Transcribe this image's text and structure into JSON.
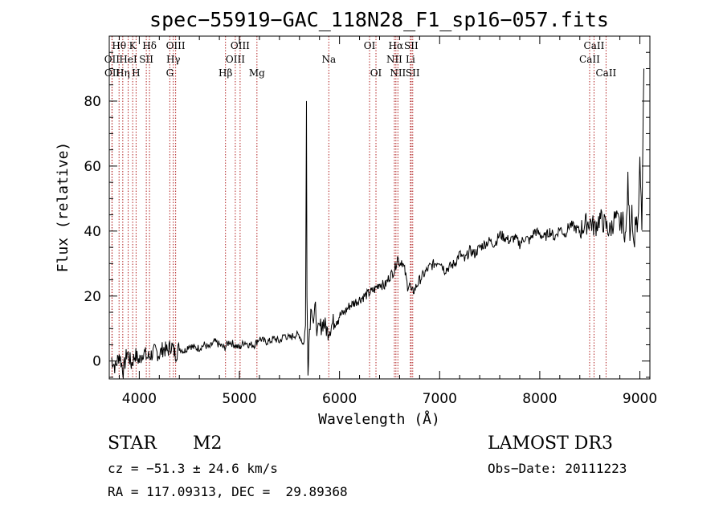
{
  "chart_data": {
    "type": "line",
    "title": "spec−55919−GAC_118N28_F1_sp16−057.fits",
    "xlabel": "Wavelength (Å)",
    "ylabel": "Flux (relative)",
    "xlim": [
      3700,
      9100
    ],
    "ylim": [
      -5.5,
      100
    ],
    "xticks": [
      4000,
      5000,
      6000,
      7000,
      8000,
      9000
    ],
    "yticks": [
      0,
      20,
      40,
      60,
      80
    ],
    "series": [
      {
        "name": "flux",
        "x": [
          3720,
          3760,
          3800,
          3840,
          3880,
          3920,
          3960,
          4000,
          4040,
          4080,
          4120,
          4160,
          4200,
          4240,
          4280,
          4320,
          4360,
          4400,
          4450,
          4500,
          4550,
          4600,
          4650,
          4700,
          4750,
          4800,
          4850,
          4900,
          4950,
          5000,
          5050,
          5100,
          5150,
          5200,
          5250,
          5300,
          5350,
          5400,
          5450,
          5500,
          5550,
          5600,
          5640,
          5660,
          5670,
          5675,
          5685,
          5700,
          5720,
          5740,
          5760,
          5780,
          5800,
          5840,
          5880,
          5920,
          5960,
          6000,
          6050,
          6100,
          6150,
          6200,
          6250,
          6300,
          6350,
          6400,
          6450,
          6500,
          6550,
          6580,
          6600,
          6620,
          6650,
          6680,
          6700,
          6720,
          6750,
          6800,
          6850,
          6900,
          6950,
          7000,
          7050,
          7100,
          7150,
          7200,
          7250,
          7300,
          7350,
          7400,
          7450,
          7500,
          7550,
          7600,
          7650,
          7700,
          7750,
          7800,
          7850,
          7900,
          7950,
          8000,
          8050,
          8100,
          8150,
          8200,
          8250,
          8300,
          8350,
          8400,
          8450,
          8500,
          8550,
          8600,
          8650,
          8700,
          8750,
          8800,
          8830,
          8860,
          8880,
          8900,
          8920,
          8940,
          8960,
          8980,
          9000,
          9020,
          9040
        ],
        "values": [
          1,
          -2,
          2,
          -3,
          3,
          -1,
          2,
          0,
          3,
          1,
          2,
          3,
          2,
          4,
          3,
          5,
          2,
          4,
          3,
          5,
          4,
          4,
          5,
          4,
          6,
          5,
          4,
          6,
          5,
          4,
          6,
          5,
          5,
          7,
          6,
          6,
          7,
          6,
          8,
          7,
          8,
          8,
          5,
          10,
          80,
          20,
          -2,
          10,
          18,
          12,
          16,
          8,
          10,
          12,
          9,
          11,
          13,
          14,
          15,
          17,
          18,
          19,
          20,
          21,
          22,
          24,
          23,
          26,
          28,
          32,
          30,
          31,
          28,
          23,
          24,
          21,
          22,
          25,
          27,
          29,
          30,
          31,
          28,
          29,
          30,
          33,
          31,
          34,
          33,
          35,
          36,
          37,
          36,
          39,
          38,
          37,
          38,
          36,
          38,
          37,
          40,
          39,
          38,
          40,
          38,
          41,
          39,
          42,
          41,
          40,
          42,
          43,
          41,
          44,
          42,
          40,
          44,
          42,
          43,
          38,
          55,
          40,
          48,
          35,
          45,
          40,
          60,
          42,
          90
        ]
      }
    ],
    "spectral_lines": [
      {
        "label": "Hθ",
        "x": 3798,
        "row": 1
      },
      {
        "label": "OII",
        "x": 3727,
        "row": 2
      },
      {
        "label": "OII",
        "x": 3729,
        "row": 3
      },
      {
        "label": "HeI",
        "x": 3889,
        "row": 2
      },
      {
        "label": "Hη",
        "x": 3835,
        "row": 3
      },
      {
        "label": "K",
        "x": 3934,
        "row": 1
      },
      {
        "label": "H",
        "x": 3968,
        "row": 3
      },
      {
        "label": "SII",
        "x": 4070,
        "row": 2
      },
      {
        "label": "Hδ",
        "x": 4102,
        "row": 1
      },
      {
        "label": "OIII",
        "x": 4363,
        "row": 1
      },
      {
        "label": "Hγ",
        "x": 4340,
        "row": 2
      },
      {
        "label": "G",
        "x": 4305,
        "row": 3
      },
      {
        "label": "Hβ",
        "x": 4861,
        "row": 3
      },
      {
        "label": "OIII",
        "x": 4959,
        "row": 2
      },
      {
        "label": "OIII",
        "x": 5007,
        "row": 1
      },
      {
        "label": "Mg",
        "x": 5175,
        "row": 3
      },
      {
        "label": "Na",
        "x": 5893,
        "row": 2
      },
      {
        "label": "OI",
        "x": 6300,
        "row": 1
      },
      {
        "label": "OI",
        "x": 6364,
        "row": 3
      },
      {
        "label": "NII",
        "x": 6548,
        "row": 2
      },
      {
        "label": "Hα",
        "x": 6563,
        "row": 1
      },
      {
        "label": "NII",
        "x": 6583,
        "row": 3
      },
      {
        "label": "Li",
        "x": 6708,
        "row": 2
      },
      {
        "label": "SII",
        "x": 6716,
        "row": 1
      },
      {
        "label": "SII",
        "x": 6731,
        "row": 3
      },
      {
        "label": "CaII",
        "x": 8498,
        "row": 2
      },
      {
        "label": "CaII",
        "x": 8542,
        "row": 1
      },
      {
        "label": "CaII",
        "x": 8662,
        "row": 3
      }
    ]
  },
  "info": {
    "class": "STAR",
    "subclass": "M2",
    "survey": "LAMOST DR3",
    "cz": "cz = −51.3 ± 24.6 km/s",
    "obs_date": "Obs−Date: 20111223",
    "radec": "RA = 117.09313, DEC =  29.89368"
  },
  "colors": {
    "line_marker": "#b22222",
    "spectrum": "#000000"
  }
}
